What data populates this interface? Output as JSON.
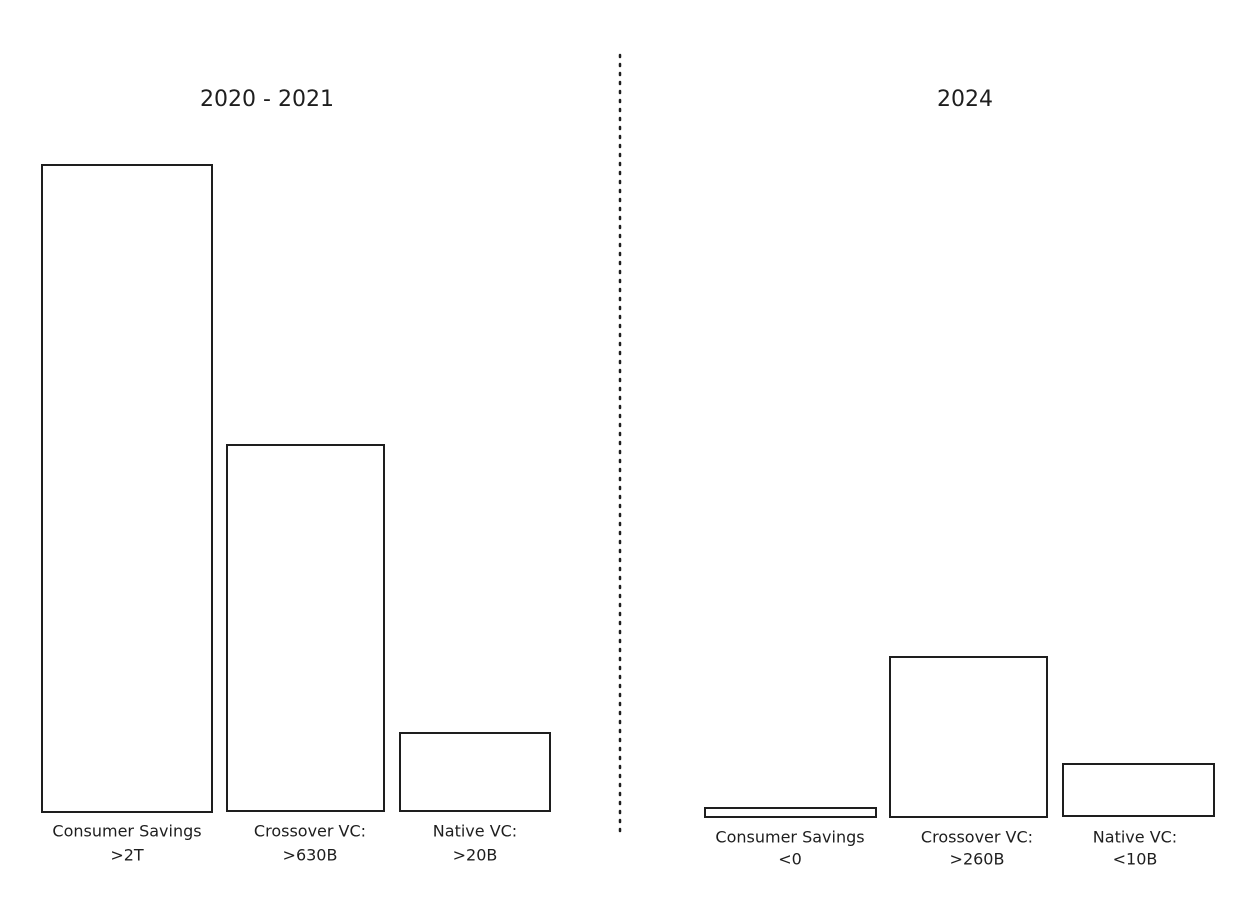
{
  "panels": [
    {
      "title": "2020 - 2021",
      "items": [
        {
          "label": "Consumer Savings",
          "value": ">2T"
        },
        {
          "label": "Crossover VC:",
          "value": ">630B"
        },
        {
          "label": "Native VC:",
          "value": ">20B"
        }
      ]
    },
    {
      "title": "2024",
      "items": [
        {
          "label": "Consumer Savings",
          "value": "<0"
        },
        {
          "label": "Crossover VC:",
          "value": ">260B"
        },
        {
          "label": "Native VC:",
          "value": "<10B"
        }
      ]
    }
  ]
}
